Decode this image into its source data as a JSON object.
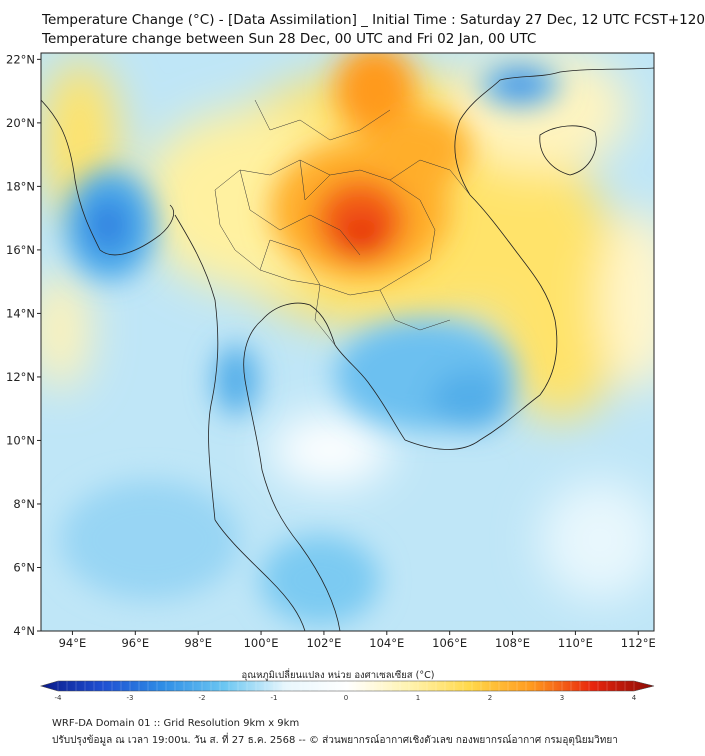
{
  "header": {
    "title_line1": "Temperature Change (°C) - [Data Assimilation] _ Initial Time : Saturday 27 Dec, 12 UTC FCST+120",
    "title_line2": "Temperature change between Sun 28 Dec, 00 UTC and Fri 02 Jan, 00 UTC"
  },
  "map": {
    "lat_labels": [
      "22°N",
      "20°N",
      "18°N",
      "16°N",
      "14°N",
      "12°N",
      "10°N",
      "8°N",
      "6°N",
      "4°N"
    ],
    "lat_values": [
      22,
      20,
      18,
      16,
      14,
      12,
      10,
      8,
      6,
      4
    ],
    "lon_labels": [
      "94°E",
      "96°E",
      "98°E",
      "100°E",
      "102°E",
      "104°E",
      "106°E",
      "108°E",
      "110°E",
      "112°E"
    ],
    "lon_values": [
      94,
      96,
      98,
      100,
      102,
      104,
      106,
      108,
      110,
      112
    ],
    "extent": {
      "lon_min": 93,
      "lon_max": 112.5,
      "lat_min": 4,
      "lat_max": 22.2
    },
    "anomalies": [
      {
        "region": "northeast-thailand-warm-core",
        "lon": 102.9,
        "lat": 16.6,
        "value": 3.2
      },
      {
        "region": "northern-laos-warm",
        "lon": 103.5,
        "lat": 20.8,
        "value": 2.2
      },
      {
        "region": "north-thailand-warm",
        "lon": 100.5,
        "lat": 18.0,
        "value": 0.8
      },
      {
        "region": "central-vietnam-warm",
        "lon": 107.0,
        "lat": 16.0,
        "value": 1.0
      },
      {
        "region": "myanmar-cool",
        "lon": 95.2,
        "lat": 16.9,
        "value": -2.0
      },
      {
        "region": "cambodia-cool",
        "lon": 104.5,
        "lat": 12.0,
        "value": -1.6
      },
      {
        "region": "gulf-of-tonkin-cool",
        "lon": 108.0,
        "lat": 21.3,
        "value": -1.8
      },
      {
        "region": "malay-peninsula-cool",
        "lon": 101.5,
        "lat": 5.5,
        "value": -1.5
      },
      {
        "region": "andaman-sea-cool",
        "lon": 99.0,
        "lat": 12.0,
        "value": -1.3
      },
      {
        "region": "south-china-sea-warm",
        "lon": 109.5,
        "lat": 11.5,
        "value": 0.8
      }
    ]
  },
  "colorbar": {
    "label": "อุณหภูมิเปลี่ยนแปลง หน่วย องศาเซลเซียส (°C)",
    "min": -4,
    "max": 4,
    "tick_labels": [
      "-4",
      "-3",
      "-2",
      "-1",
      "0",
      "1",
      "2",
      "3",
      "4"
    ],
    "color_stops": [
      "#0a1a8a",
      "#1f4fd1",
      "#2f8ee6",
      "#6cc7f2",
      "#e9f7fd",
      "#ffffff",
      "#fff3b0",
      "#ffd84a",
      "#ff9a1f",
      "#e8250e",
      "#8a0b05"
    ]
  },
  "footer": {
    "line1": "WRF-DA Domain 01 :: Grid Resolution 9km x 9km",
    "line2": "ปรับปรุงข้อมูล ณ เวลา 19:00น. วัน ส. ที่ 27 ธ.ค. 2568 -- © ส่วนพยากรณ์อากาศเชิงตัวเลข กองพยากรณ์อากาศ กรมอุตุนิยมวิทยา"
  }
}
